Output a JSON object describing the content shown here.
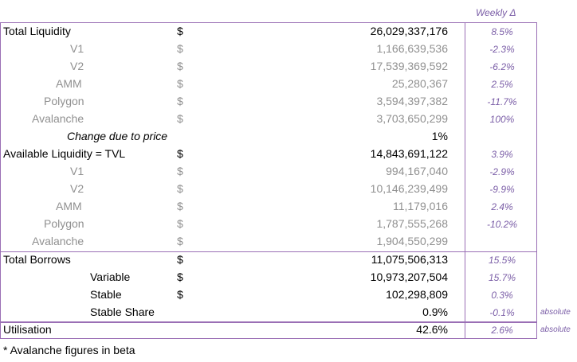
{
  "header": {
    "weekly_label": "Weekly Δ"
  },
  "rows": [
    {
      "label": "Total Liquidity",
      "currency": "$",
      "value": "26,029,337,176",
      "weekly": "8.5%",
      "note": "",
      "style": "main",
      "indent": 4
    },
    {
      "label": "V1",
      "currency": "$",
      "value": "1,166,639,536",
      "weekly": "-2.3%",
      "note": "",
      "style": "sub",
      "indent": 88
    },
    {
      "label": "V2",
      "currency": "$",
      "value": "17,539,369,592",
      "weekly": "-6.2%",
      "note": "",
      "style": "sub",
      "indent": 88
    },
    {
      "label": "AMM",
      "currency": "$",
      "value": "25,280,367",
      "weekly": "2.5%",
      "note": "",
      "style": "sub",
      "indent": 70
    },
    {
      "label": "Polygon",
      "currency": "$",
      "value": "3,594,397,382",
      "weekly": "-11.7%",
      "note": "",
      "style": "sub",
      "indent": 55
    },
    {
      "label": "Avalanche",
      "currency": "$",
      "value": "3,703,650,299",
      "weekly": "100%",
      "note": "",
      "style": "sub",
      "indent": 40
    },
    {
      "label": "Change due to price",
      "currency": "",
      "value": "1%",
      "weekly": "",
      "note": "",
      "style": "price",
      "indent": 84
    },
    {
      "label": "Available Liquidity  = TVL",
      "currency": "$",
      "value": "14,843,691,122",
      "weekly": "3.9%",
      "note": "",
      "style": "main",
      "indent": 4
    },
    {
      "label": "V1",
      "currency": "$",
      "value": "994,167,040",
      "weekly": "-2.9%",
      "note": "",
      "style": "sub",
      "indent": 88
    },
    {
      "label": "V2",
      "currency": "$",
      "value": "10,146,239,499",
      "weekly": "-9.9%",
      "note": "",
      "style": "sub",
      "indent": 88
    },
    {
      "label": "AMM",
      "currency": "$",
      "value": "11,179,016",
      "weekly": "2.4%",
      "note": "",
      "style": "sub",
      "indent": 70
    },
    {
      "label": "Polygon",
      "currency": "$",
      "value": "1,787,555,268",
      "weekly": "-10.2%",
      "note": "",
      "style": "sub",
      "indent": 55
    },
    {
      "label": "Avalanche",
      "currency": "$",
      "value": "1,904,550,299",
      "weekly": "",
      "note": "",
      "style": "sub",
      "indent": 40
    },
    {
      "label": "Total Borrows",
      "currency": "$",
      "value": "11,075,506,313",
      "weekly": "15.5%",
      "note": "",
      "style": "main",
      "indent": 4
    },
    {
      "label": "Variable",
      "currency": "$",
      "value": "10,973,207,504",
      "weekly": "15.7%",
      "note": "",
      "style": "main",
      "indent": 113
    },
    {
      "label": "Stable",
      "currency": "$",
      "value": "102,298,809",
      "weekly": "0.3%",
      "note": "",
      "style": "main",
      "indent": 113
    },
    {
      "label": "Stable Share",
      "currency": "",
      "value": "0.9%",
      "weekly": "-0.1%",
      "note": "absolute",
      "style": "main",
      "indent": 113
    },
    {
      "label": "Utilisation",
      "currency": "",
      "value": "42.6%",
      "weekly": "2.6%",
      "note": "absolute",
      "style": "main",
      "indent": 4
    }
  ],
  "footer": {
    "text": "* Avalanche figures in beta"
  }
}
